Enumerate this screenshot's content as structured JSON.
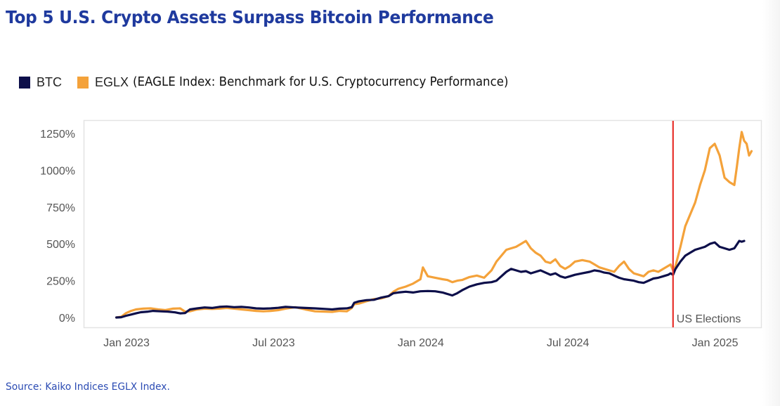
{
  "title": "Top 5 U.S. Crypto Assets Surpass Bitcoin Performance",
  "legend": {
    "items": [
      {
        "label": "BTC",
        "color": "#0d0f4a"
      },
      {
        "label": "EGLX",
        "color": "#f4a23a"
      }
    ],
    "description": "(EAGLE Index: Benchmark for U.S. Cryptocurrency Performance)"
  },
  "source": "Source: Kaiko Indices EGLX Index.",
  "chart_data": {
    "type": "line",
    "title": "Top 5 U.S. Crypto Assets Surpass Bitcoin Performance",
    "xlabel": "",
    "ylabel": "",
    "x_unit": "months since Jan 2023",
    "xlim": [
      -0.6,
      25
    ],
    "ylim": [
      -30,
      1290
    ],
    "y_ticks": [
      0,
      250,
      500,
      750,
      1000,
      1250
    ],
    "y_tick_labels": [
      "0%",
      "250%",
      "500%",
      "750%",
      "1000%",
      "1250%"
    ],
    "x_ticks": [
      0,
      6,
      12,
      18,
      24
    ],
    "x_tick_labels": [
      "Jan 2023",
      "Jul 2023",
      "Jan 2024",
      "Jul 2024",
      "Jan 2025"
    ],
    "grid": false,
    "legend_position": "top-left",
    "annotations": [
      {
        "type": "vline",
        "x": 22.2,
        "label": "US Elections",
        "color": "#e8302a"
      }
    ],
    "series": [
      {
        "name": "BTC",
        "color": "#0d0f4a",
        "points": [
          [
            -0.5,
            0
          ],
          [
            -0.3,
            2
          ],
          [
            -0.1,
            12
          ],
          [
            0.1,
            20
          ],
          [
            0.3,
            28
          ],
          [
            0.5,
            36
          ],
          [
            0.8,
            40
          ],
          [
            1.0,
            45
          ],
          [
            1.3,
            42
          ],
          [
            1.6,
            40
          ],
          [
            1.9,
            35
          ],
          [
            2.1,
            28
          ],
          [
            2.3,
            30
          ],
          [
            2.5,
            55
          ],
          [
            2.8,
            62
          ],
          [
            3.1,
            68
          ],
          [
            3.4,
            65
          ],
          [
            3.7,
            72
          ],
          [
            4.0,
            75
          ],
          [
            4.3,
            70
          ],
          [
            4.6,
            72
          ],
          [
            4.9,
            68
          ],
          [
            5.2,
            62
          ],
          [
            5.5,
            60
          ],
          [
            5.8,
            62
          ],
          [
            6.1,
            66
          ],
          [
            6.4,
            72
          ],
          [
            6.8,
            68
          ],
          [
            7.2,
            65
          ],
          [
            7.6,
            62
          ],
          [
            8.0,
            58
          ],
          [
            8.3,
            55
          ],
          [
            8.6,
            60
          ],
          [
            8.9,
            62
          ],
          [
            9.1,
            70
          ],
          [
            9.2,
            100
          ],
          [
            9.4,
            110
          ],
          [
            9.7,
            118
          ],
          [
            10.0,
            120
          ],
          [
            10.3,
            135
          ],
          [
            10.6,
            145
          ],
          [
            10.8,
            165
          ],
          [
            11.0,
            170
          ],
          [
            11.3,
            175
          ],
          [
            11.6,
            170
          ],
          [
            11.9,
            178
          ],
          [
            12.2,
            180
          ],
          [
            12.5,
            178
          ],
          [
            12.8,
            170
          ],
          [
            13.0,
            160
          ],
          [
            13.2,
            150
          ],
          [
            13.4,
            165
          ],
          [
            13.6,
            185
          ],
          [
            13.9,
            210
          ],
          [
            14.2,
            225
          ],
          [
            14.5,
            235
          ],
          [
            14.8,
            240
          ],
          [
            15.0,
            250
          ],
          [
            15.2,
            280
          ],
          [
            15.4,
            310
          ],
          [
            15.6,
            330
          ],
          [
            15.8,
            320
          ],
          [
            16.0,
            310
          ],
          [
            16.2,
            315
          ],
          [
            16.4,
            300
          ],
          [
            16.6,
            310
          ],
          [
            16.8,
            320
          ],
          [
            17.0,
            305
          ],
          [
            17.2,
            290
          ],
          [
            17.4,
            300
          ],
          [
            17.6,
            280
          ],
          [
            17.8,
            270
          ],
          [
            18.0,
            280
          ],
          [
            18.2,
            290
          ],
          [
            18.5,
            300
          ],
          [
            18.8,
            310
          ],
          [
            19.0,
            320
          ],
          [
            19.2,
            315
          ],
          [
            19.4,
            305
          ],
          [
            19.6,
            300
          ],
          [
            19.8,
            285
          ],
          [
            20.0,
            270
          ],
          [
            20.2,
            260
          ],
          [
            20.4,
            255
          ],
          [
            20.6,
            250
          ],
          [
            20.8,
            240
          ],
          [
            21.0,
            235
          ],
          [
            21.2,
            250
          ],
          [
            21.4,
            265
          ],
          [
            21.6,
            270
          ],
          [
            21.8,
            280
          ],
          [
            22.0,
            290
          ],
          [
            22.1,
            300
          ],
          [
            22.2,
            290
          ],
          [
            22.3,
            330
          ],
          [
            22.5,
            380
          ],
          [
            22.7,
            420
          ],
          [
            22.9,
            440
          ],
          [
            23.1,
            460
          ],
          [
            23.3,
            470
          ],
          [
            23.5,
            480
          ],
          [
            23.7,
            500
          ],
          [
            23.9,
            510
          ],
          [
            24.1,
            480
          ],
          [
            24.3,
            470
          ],
          [
            24.5,
            460
          ],
          [
            24.7,
            470
          ],
          [
            24.8,
            495
          ],
          [
            24.9,
            520
          ],
          [
            25.0,
            515
          ],
          [
            25.1,
            520
          ]
        ]
      },
      {
        "name": "EGLX",
        "color": "#f4a23a",
        "points": [
          [
            -0.5,
            0
          ],
          [
            -0.3,
            5
          ],
          [
            -0.1,
            30
          ],
          [
            0.1,
            45
          ],
          [
            0.3,
            55
          ],
          [
            0.6,
            60
          ],
          [
            0.9,
            62
          ],
          [
            1.2,
            55
          ],
          [
            1.5,
            50
          ],
          [
            1.8,
            60
          ],
          [
            2.1,
            62
          ],
          [
            2.3,
            40
          ],
          [
            2.5,
            42
          ],
          [
            2.8,
            55
          ],
          [
            3.1,
            60
          ],
          [
            3.4,
            58
          ],
          [
            3.7,
            60
          ],
          [
            4.0,
            65
          ],
          [
            4.3,
            60
          ],
          [
            4.6,
            55
          ],
          [
            4.9,
            50
          ],
          [
            5.2,
            45
          ],
          [
            5.5,
            42
          ],
          [
            5.8,
            45
          ],
          [
            6.1,
            50
          ],
          [
            6.4,
            60
          ],
          [
            6.8,
            70
          ],
          [
            7.2,
            55
          ],
          [
            7.6,
            42
          ],
          [
            8.0,
            40
          ],
          [
            8.3,
            38
          ],
          [
            8.6,
            45
          ],
          [
            8.9,
            42
          ],
          [
            9.1,
            65
          ],
          [
            9.2,
            90
          ],
          [
            9.4,
            95
          ],
          [
            9.7,
            110
          ],
          [
            10.0,
            125
          ],
          [
            10.3,
            130
          ],
          [
            10.6,
            145
          ],
          [
            10.8,
            175
          ],
          [
            11.0,
            195
          ],
          [
            11.3,
            210
          ],
          [
            11.6,
            230
          ],
          [
            11.9,
            260
          ],
          [
            12.0,
            340
          ],
          [
            12.2,
            280
          ],
          [
            12.5,
            270
          ],
          [
            12.8,
            260
          ],
          [
            13.0,
            255
          ],
          [
            13.2,
            240
          ],
          [
            13.4,
            250
          ],
          [
            13.6,
            255
          ],
          [
            13.9,
            275
          ],
          [
            14.2,
            285
          ],
          [
            14.5,
            270
          ],
          [
            14.8,
            320
          ],
          [
            15.0,
            380
          ],
          [
            15.2,
            420
          ],
          [
            15.4,
            460
          ],
          [
            15.6,
            470
          ],
          [
            15.8,
            480
          ],
          [
            16.0,
            500
          ],
          [
            16.2,
            520
          ],
          [
            16.4,
            470
          ],
          [
            16.6,
            440
          ],
          [
            16.8,
            420
          ],
          [
            17.0,
            380
          ],
          [
            17.2,
            370
          ],
          [
            17.4,
            395
          ],
          [
            17.6,
            350
          ],
          [
            17.8,
            330
          ],
          [
            18.0,
            350
          ],
          [
            18.2,
            380
          ],
          [
            18.5,
            390
          ],
          [
            18.8,
            380
          ],
          [
            19.0,
            360
          ],
          [
            19.2,
            340
          ],
          [
            19.4,
            330
          ],
          [
            19.6,
            320
          ],
          [
            19.8,
            310
          ],
          [
            20.0,
            350
          ],
          [
            20.2,
            380
          ],
          [
            20.4,
            330
          ],
          [
            20.6,
            300
          ],
          [
            20.8,
            290
          ],
          [
            21.0,
            280
          ],
          [
            21.2,
            310
          ],
          [
            21.4,
            320
          ],
          [
            21.6,
            310
          ],
          [
            21.8,
            330
          ],
          [
            22.0,
            350
          ],
          [
            22.1,
            360
          ],
          [
            22.2,
            320
          ],
          [
            22.3,
            350
          ],
          [
            22.5,
            480
          ],
          [
            22.7,
            620
          ],
          [
            22.9,
            700
          ],
          [
            23.1,
            780
          ],
          [
            23.3,
            900
          ],
          [
            23.5,
            1000
          ],
          [
            23.7,
            1150
          ],
          [
            23.9,
            1180
          ],
          [
            24.1,
            1100
          ],
          [
            24.3,
            950
          ],
          [
            24.5,
            920
          ],
          [
            24.7,
            900
          ],
          [
            24.8,
            1020
          ],
          [
            24.9,
            1150
          ],
          [
            25.0,
            1260
          ],
          [
            25.1,
            1200
          ],
          [
            25.2,
            1180
          ],
          [
            25.3,
            1100
          ],
          [
            25.4,
            1130
          ]
        ]
      }
    ]
  }
}
